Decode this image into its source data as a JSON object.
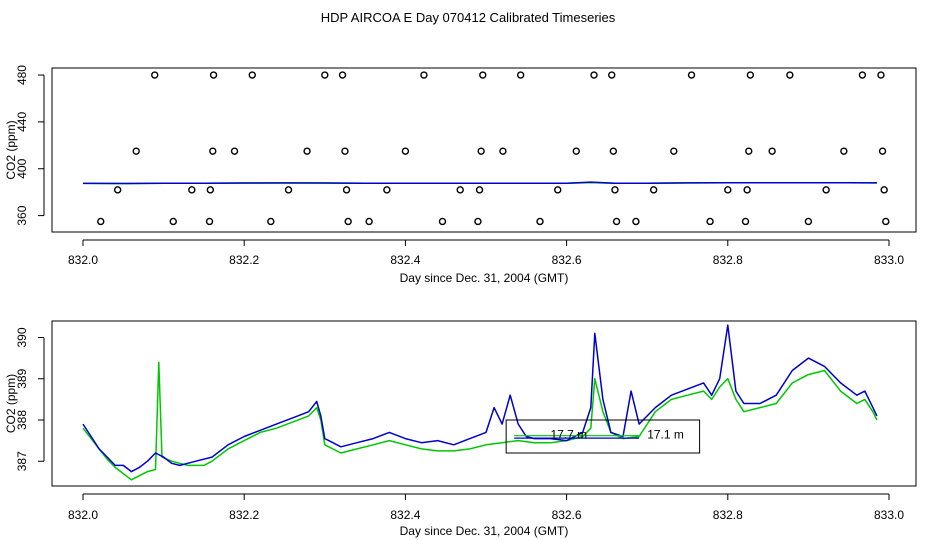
{
  "title": "HDP AIRCOA E  Day 070412  Calibrated Timeseries",
  "colors": {
    "series_green": "#00c800",
    "series_blue": "#0000cc",
    "axis": "#000000",
    "points": "#000000"
  },
  "chart_data": [
    {
      "type": "scatter",
      "xlabel": "Day since Dec. 31, 2004 (GMT)",
      "ylabel": "CO2 (ppm)",
      "xlim": [
        832.0,
        833.0
      ],
      "ylim": [
        346,
        486
      ],
      "xticks": [
        "832.0",
        "832.2",
        "832.4",
        "832.6",
        "832.8",
        "833.0"
      ],
      "yticks": [
        "360",
        "400",
        "440",
        "480"
      ],
      "grid": false,
      "points": [
        [
          832.022,
          355
        ],
        [
          832.043,
          382
        ],
        [
          832.066,
          415
        ],
        [
          832.089,
          480
        ],
        [
          832.112,
          355
        ],
        [
          832.135,
          382
        ],
        [
          832.157,
          355
        ],
        [
          832.158,
          382
        ],
        [
          832.161,
          415
        ],
        [
          832.162,
          480
        ],
        [
          832.188,
          415
        ],
        [
          832.21,
          480
        ],
        [
          832.233,
          355
        ],
        [
          832.255,
          382
        ],
        [
          832.278,
          415
        ],
        [
          832.3,
          480
        ],
        [
          832.322,
          480
        ],
        [
          832.325,
          415
        ],
        [
          832.327,
          382
        ],
        [
          832.329,
          355
        ],
        [
          832.355,
          355
        ],
        [
          832.377,
          382
        ],
        [
          832.4,
          415
        ],
        [
          832.423,
          480
        ],
        [
          832.446,
          355
        ],
        [
          832.468,
          382
        ],
        [
          832.49,
          355
        ],
        [
          832.492,
          382
        ],
        [
          832.494,
          415
        ],
        [
          832.496,
          480
        ],
        [
          832.521,
          415
        ],
        [
          832.543,
          480
        ],
        [
          832.567,
          355
        ],
        [
          832.589,
          382
        ],
        [
          832.612,
          415
        ],
        [
          832.634,
          480
        ],
        [
          832.656,
          480
        ],
        [
          832.658,
          415
        ],
        [
          832.66,
          382
        ],
        [
          832.662,
          355
        ],
        [
          832.686,
          355
        ],
        [
          832.708,
          382
        ],
        [
          832.733,
          415
        ],
        [
          832.755,
          480
        ],
        [
          832.778,
          355
        ],
        [
          832.8,
          382
        ],
        [
          832.822,
          355
        ],
        [
          832.824,
          382
        ],
        [
          832.826,
          415
        ],
        [
          832.828,
          480
        ],
        [
          832.855,
          415
        ],
        [
          832.877,
          480
        ],
        [
          832.9,
          355
        ],
        [
          832.922,
          382
        ],
        [
          832.944,
          415
        ],
        [
          832.967,
          480
        ],
        [
          832.99,
          480
        ],
        [
          832.992,
          415
        ],
        [
          832.994,
          382
        ],
        [
          832.996,
          355
        ]
      ],
      "series": [
        {
          "color": "#00c800",
          "values": [
            [
              832.0,
              387.6
            ],
            [
              832.05,
              387.4
            ],
            [
              832.1,
              387.6
            ],
            [
              832.15,
              387.7
            ],
            [
              832.2,
              387.8
            ],
            [
              832.25,
              388.0
            ],
            [
              832.3,
              387.8
            ],
            [
              832.35,
              387.7
            ],
            [
              832.4,
              387.7
            ],
            [
              832.45,
              387.6
            ],
            [
              832.5,
              387.6
            ],
            [
              832.55,
              387.7
            ],
            [
              832.6,
              387.7
            ],
            [
              832.63,
              388.2
            ],
            [
              832.66,
              387.7
            ],
            [
              832.7,
              387.7
            ],
            [
              832.75,
              387.9
            ],
            [
              832.8,
              388.0
            ],
            [
              832.85,
              388.0
            ],
            [
              832.9,
              388.1
            ],
            [
              832.95,
              388.0
            ],
            [
              832.985,
              387.9
            ]
          ]
        },
        {
          "color": "#0000cc",
          "values": [
            [
              832.0,
              387.5
            ],
            [
              832.05,
              387.4
            ],
            [
              832.1,
              387.6
            ],
            [
              832.15,
              387.7
            ],
            [
              832.2,
              387.8
            ],
            [
              832.25,
              387.8
            ],
            [
              832.3,
              387.8
            ],
            [
              832.35,
              387.7
            ],
            [
              832.4,
              387.7
            ],
            [
              832.45,
              387.6
            ],
            [
              832.5,
              387.6
            ],
            [
              832.55,
              387.7
            ],
            [
              832.6,
              387.7
            ],
            [
              832.63,
              388.6
            ],
            [
              832.66,
              387.7
            ],
            [
              832.7,
              387.7
            ],
            [
              832.75,
              387.9
            ],
            [
              832.8,
              388.0
            ],
            [
              832.85,
              388.0
            ],
            [
              832.9,
              388.1
            ],
            [
              832.95,
              388.0
            ],
            [
              832.985,
              387.9
            ]
          ]
        }
      ]
    },
    {
      "type": "line",
      "xlabel": "Day since Dec. 31, 2004 (GMT)",
      "ylabel": "CO2 (ppm)",
      "xlim": [
        832.0,
        833.0
      ],
      "ylim": [
        386.4,
        390.4
      ],
      "xticks": [
        "832.0",
        "832.2",
        "832.4",
        "832.6",
        "832.8",
        "833.0"
      ],
      "yticks": [
        "387",
        "388",
        "389",
        "390"
      ],
      "grid": false,
      "annotations": [
        "17.7 m",
        "17.1 m"
      ],
      "series": [
        {
          "color": "#00c800",
          "values": [
            [
              832.0,
              387.8
            ],
            [
              832.01,
              387.55
            ],
            [
              832.02,
              387.3
            ],
            [
              832.03,
              387.05
            ],
            [
              832.04,
              386.85
            ],
            [
              832.05,
              386.7
            ],
            [
              832.06,
              386.55
            ],
            [
              832.07,
              386.65
            ],
            [
              832.08,
              386.75
            ],
            [
              832.09,
              386.8
            ],
            [
              832.094,
              389.4
            ],
            [
              832.098,
              387.1
            ],
            [
              832.11,
              387.0
            ],
            [
              832.12,
              386.95
            ],
            [
              832.13,
              386.9
            ],
            [
              832.15,
              386.9
            ],
            [
              832.16,
              387.0
            ],
            [
              832.18,
              387.3
            ],
            [
              832.2,
              387.5
            ],
            [
              832.22,
              387.7
            ],
            [
              832.24,
              387.8
            ],
            [
              832.26,
              387.95
            ],
            [
              832.28,
              388.1
            ],
            [
              832.29,
              388.3
            ],
            [
              832.295,
              388.0
            ],
            [
              832.3,
              387.4
            ],
            [
              832.32,
              387.2
            ],
            [
              832.34,
              387.3
            ],
            [
              832.36,
              387.4
            ],
            [
              832.38,
              387.5
            ],
            [
              832.4,
              387.4
            ],
            [
              832.42,
              387.3
            ],
            [
              832.44,
              387.25
            ],
            [
              832.46,
              387.25
            ],
            [
              832.48,
              387.3
            ],
            [
              832.5,
              387.4
            ],
            [
              832.52,
              387.45
            ],
            [
              832.54,
              387.5
            ],
            [
              832.56,
              387.45
            ],
            [
              832.58,
              387.45
            ],
            [
              832.6,
              387.5
            ],
            [
              832.62,
              387.6
            ],
            [
              832.63,
              387.8
            ],
            [
              832.635,
              389.0
            ],
            [
              832.645,
              388.2
            ],
            [
              832.655,
              387.7
            ],
            [
              832.67,
              387.55
            ],
            [
              832.69,
              387.6
            ],
            [
              832.71,
              388.2
            ],
            [
              832.73,
              388.5
            ],
            [
              832.75,
              388.6
            ],
            [
              832.77,
              388.7
            ],
            [
              832.78,
              388.5
            ],
            [
              832.79,
              388.8
            ],
            [
              832.8,
              389.0
            ],
            [
              832.81,
              388.5
            ],
            [
              832.82,
              388.2
            ],
            [
              832.84,
              388.3
            ],
            [
              832.86,
              388.4
            ],
            [
              832.88,
              388.9
            ],
            [
              832.9,
              389.1
            ],
            [
              832.92,
              389.2
            ],
            [
              832.94,
              388.7
            ],
            [
              832.96,
              388.4
            ],
            [
              832.97,
              388.5
            ],
            [
              832.98,
              388.2
            ],
            [
              832.985,
              388.0
            ]
          ]
        },
        {
          "color": "#0000cc",
          "values": [
            [
              832.0,
              387.9
            ],
            [
              832.01,
              387.6
            ],
            [
              832.02,
              387.3
            ],
            [
              832.03,
              387.1
            ],
            [
              832.04,
              386.9
            ],
            [
              832.05,
              386.9
            ],
            [
              832.06,
              386.75
            ],
            [
              832.07,
              386.85
            ],
            [
              832.08,
              387.0
            ],
            [
              832.09,
              387.2
            ],
            [
              832.1,
              387.1
            ],
            [
              832.11,
              386.95
            ],
            [
              832.12,
              386.9
            ],
            [
              832.13,
              386.95
            ],
            [
              832.14,
              387.0
            ],
            [
              832.16,
              387.1
            ],
            [
              832.18,
              387.4
            ],
            [
              832.2,
              387.6
            ],
            [
              832.22,
              387.75
            ],
            [
              832.24,
              387.9
            ],
            [
              832.26,
              388.05
            ],
            [
              832.28,
              388.2
            ],
            [
              832.29,
              388.45
            ],
            [
              832.295,
              388.1
            ],
            [
              832.3,
              387.55
            ],
            [
              832.32,
              387.35
            ],
            [
              832.34,
              387.45
            ],
            [
              832.36,
              387.55
            ],
            [
              832.38,
              387.7
            ],
            [
              832.4,
              387.55
            ],
            [
              832.42,
              387.45
            ],
            [
              832.44,
              387.5
            ],
            [
              832.46,
              387.4
            ],
            [
              832.48,
              387.55
            ],
            [
              832.5,
              387.7
            ],
            [
              832.51,
              388.3
            ],
            [
              832.52,
              387.9
            ],
            [
              832.53,
              388.6
            ],
            [
              832.54,
              387.9
            ],
            [
              832.55,
              387.6
            ],
            [
              832.56,
              387.55
            ],
            [
              832.58,
              387.55
            ],
            [
              832.6,
              387.5
            ],
            [
              832.62,
              387.7
            ],
            [
              832.63,
              388.3
            ],
            [
              832.635,
              390.1
            ],
            [
              832.645,
              388.5
            ],
            [
              832.655,
              387.7
            ],
            [
              832.67,
              387.6
            ],
            [
              832.68,
              388.7
            ],
            [
              832.69,
              387.9
            ],
            [
              832.71,
              388.3
            ],
            [
              832.73,
              388.6
            ],
            [
              832.75,
              388.75
            ],
            [
              832.77,
              388.9
            ],
            [
              832.78,
              388.6
            ],
            [
              832.79,
              389.0
            ],
            [
              832.8,
              390.3
            ],
            [
              832.81,
              388.7
            ],
            [
              832.82,
              388.4
            ],
            [
              832.84,
              388.4
            ],
            [
              832.86,
              388.6
            ],
            [
              832.88,
              389.2
            ],
            [
              832.9,
              389.5
            ],
            [
              832.92,
              389.3
            ],
            [
              832.94,
              388.9
            ],
            [
              832.96,
              388.6
            ],
            [
              832.97,
              388.7
            ],
            [
              832.98,
              388.3
            ],
            [
              832.985,
              388.1
            ]
          ]
        }
      ]
    }
  ]
}
